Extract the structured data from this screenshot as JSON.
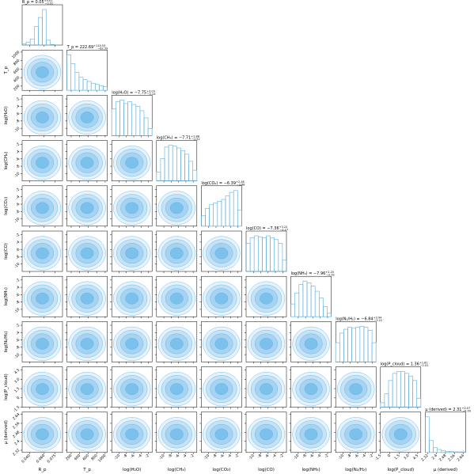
{
  "chart_data": {
    "type": "corner",
    "color": "#5aaee0",
    "params": [
      {
        "label": "R_p",
        "title": {
          "main": "R_p = 0.05",
          "plus": "+0.01",
          "minus": "−0.01"
        },
        "lim": [
          0.03,
          0.085
        ],
        "ticks": [
          {
            "value": 0.04,
            "label": "0.040"
          },
          {
            "value": 0.06,
            "label": "0.060"
          },
          {
            "value": 0.075,
            "label": "0.075"
          }
        ],
        "bins": [
          0.03,
          0.0355,
          0.041,
          0.0465,
          0.052,
          0.0575,
          0.063,
          0.0685,
          0.074,
          0.0795,
          0.085
        ],
        "counts": [
          2,
          5,
          10,
          30,
          45,
          58,
          8,
          1,
          0,
          0
        ]
      },
      {
        "label": "T_p",
        "title": {
          "main": "T_p = 222.69",
          "plus": "+115.53",
          "minus": "−62.59"
        },
        "lim": [
          100,
          1050
        ],
        "ticks": [
          200,
          400,
          600,
          800,
          1000
        ],
        "bins": [
          100,
          195,
          290,
          385,
          480,
          575,
          670,
          765,
          860,
          955,
          1050
        ],
        "counts": [
          60,
          45,
          30,
          22,
          18,
          15,
          12,
          10,
          8,
          6
        ]
      },
      {
        "label": "log(H₂O)",
        "title": {
          "main": "log(H₂O) = −7.75",
          "plus": "+3.03",
          "minus": "−2.24"
        },
        "lim": [
          -12,
          -1
        ],
        "ticks": [
          -10,
          -8,
          -6,
          -4,
          -2
        ],
        "bins": [
          -12,
          -10.9,
          -9.8,
          -8.7,
          -7.6,
          -6.5,
          -5.4,
          -4.3,
          -3.2,
          -2.1,
          -1
        ],
        "counts": [
          30,
          38,
          40,
          36,
          38,
          35,
          33,
          28,
          20,
          8
        ]
      },
      {
        "label": "log(CH₄)",
        "title": {
          "main": "log(CH₄) = −7.71",
          "plus": "+2.88",
          "minus": "−2.52"
        },
        "lim": [
          -12,
          -1
        ],
        "ticks": [
          -10,
          -8,
          -6,
          -4,
          -2
        ],
        "bins": [
          -12,
          -10.9,
          -9.8,
          -8.7,
          -7.6,
          -6.5,
          -5.4,
          -4.3,
          -3.2,
          -2.1,
          -1
        ],
        "counts": [
          10,
          25,
          38,
          40,
          39,
          37,
          34,
          30,
          22,
          12
        ]
      },
      {
        "label": "log(CO₂)",
        "title": {
          "main": "log(CO₂) = −6.39",
          "plus": "+2.48",
          "minus": "−3.88"
        },
        "lim": [
          -12,
          -1
        ],
        "ticks": [
          -10,
          -8,
          -6,
          -4,
          -2
        ],
        "bins": [
          -12,
          -10.9,
          -9.8,
          -8.7,
          -7.6,
          -6.5,
          -5.4,
          -4.3,
          -3.2,
          -2.1,
          -1
        ],
        "counts": [
          12,
          20,
          24,
          26,
          28,
          30,
          34,
          38,
          40,
          18
        ]
      },
      {
        "label": "log(CO)",
        "title": {
          "main": "log(CO) = −7.36",
          "plus": "+3.22",
          "minus": "−3.27"
        },
        "lim": [
          -12,
          -1
        ],
        "ticks": [
          -10,
          -8,
          -6,
          -4,
          -2
        ],
        "bins": [
          -12,
          -10.9,
          -9.8,
          -8.7,
          -7.6,
          -6.5,
          -5.4,
          -4.3,
          -3.2,
          -2.1,
          -1
        ],
        "counts": [
          30,
          36,
          38,
          37,
          36,
          38,
          36,
          34,
          30,
          12
        ]
      },
      {
        "label": "log(NH₃)",
        "title": {
          "main": "log(NH₃) = −7.96",
          "plus": "+2.25",
          "minus": "−2.02"
        },
        "lim": [
          -12,
          -1
        ],
        "ticks": [
          -10,
          -8,
          -6,
          -4,
          -2
        ],
        "bins": [
          -12,
          -10.9,
          -9.8,
          -8.7,
          -7.6,
          -6.5,
          -5.4,
          -4.3,
          -3.2,
          -2.1,
          -1
        ],
        "counts": [
          15,
          28,
          38,
          42,
          40,
          36,
          30,
          22,
          12,
          4
        ]
      },
      {
        "label": "log(N₂/H₂)",
        "title": {
          "main": "log(N₂/H₂) = −6.84",
          "plus": "+3.94",
          "minus": "−3.22"
        },
        "lim": [
          -12,
          -1
        ],
        "ticks": [
          -10,
          -8,
          -6,
          -4,
          -2
        ],
        "bins": [
          -12,
          -10.9,
          -9.8,
          -8.7,
          -7.6,
          -6.5,
          -5.4,
          -4.3,
          -3.2,
          -2.1,
          -1
        ],
        "counts": [
          20,
          30,
          34,
          36,
          35,
          36,
          37,
          36,
          33,
          20
        ]
      },
      {
        "label": "log(P_cloud)",
        "title": {
          "main": "log(P_cloud) = 1.36",
          "plus": "+1.81",
          "minus": "−2.01"
        },
        "lim": [
          -1.5,
          5
        ],
        "ticks": [
          -1.5,
          0,
          1.5,
          {
            "value": 3,
            "label": "3.0"
          },
          4.5
        ],
        "bins": [
          -1.5,
          -0.85,
          -0.2,
          0.45,
          1.1,
          1.75,
          2.4,
          3.05,
          3.7,
          4.35,
          5
        ],
        "counts": [
          5,
          15,
          30,
          38,
          40,
          40,
          38,
          35,
          30,
          10
        ]
      },
      {
        "label": "μ (derived)",
        "title": {
          "main": "μ (derived) = 2.31",
          "plus": "+0.07",
          "minus": "−0.00"
        },
        "lim": [
          2.3,
          2.66
        ],
        "ticks": [
          2.32,
          2.4,
          2.48,
          2.56,
          2.64
        ],
        "bins": [
          2.3,
          2.336,
          2.372,
          2.408,
          2.444,
          2.48,
          2.516,
          2.552,
          2.588,
          2.624,
          2.66
        ],
        "counts": [
          60,
          20,
          8,
          5,
          3,
          2,
          2,
          1,
          1,
          1
        ]
      }
    ]
  }
}
